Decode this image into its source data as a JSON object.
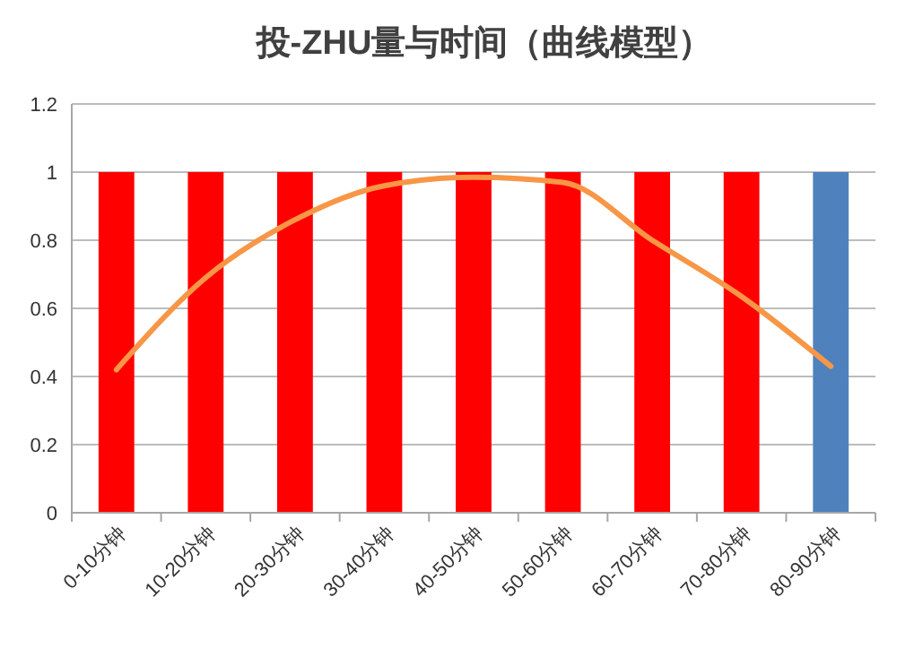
{
  "chart_data": {
    "type": "bar",
    "title": "投-ZHU量与时间（曲线模型）",
    "categories": [
      "0-10分钟",
      "10-20分钟",
      "20-30分钟",
      "30-40分钟",
      "40-50分钟",
      "50-60分钟",
      "60-70分钟",
      "70-80分钟",
      "80-90分钟"
    ],
    "series": [
      {
        "colors": [
          "#ff0000",
          "#ff0000",
          "#ff0000",
          "#ff0000",
          "#ff0000",
          "#ff0000",
          "#ff0000",
          "#ff0000",
          "#4f81bd"
        ],
        "values": [
          1,
          1,
          1,
          1,
          1,
          1,
          1,
          1,
          1
        ]
      },
      {
        "type": "line",
        "color": "#f79646",
        "values": [
          0.42,
          0.69,
          0.86,
          0.96,
          0.985,
          0.97,
          0.8,
          0.635,
          0.43
        ]
      }
    ],
    "ylim": [
      0,
      1.2
    ],
    "yticks": [
      0,
      0.2,
      0.4,
      0.6,
      0.8,
      1,
      1.2
    ],
    "grid": "y",
    "marker": "none"
  }
}
